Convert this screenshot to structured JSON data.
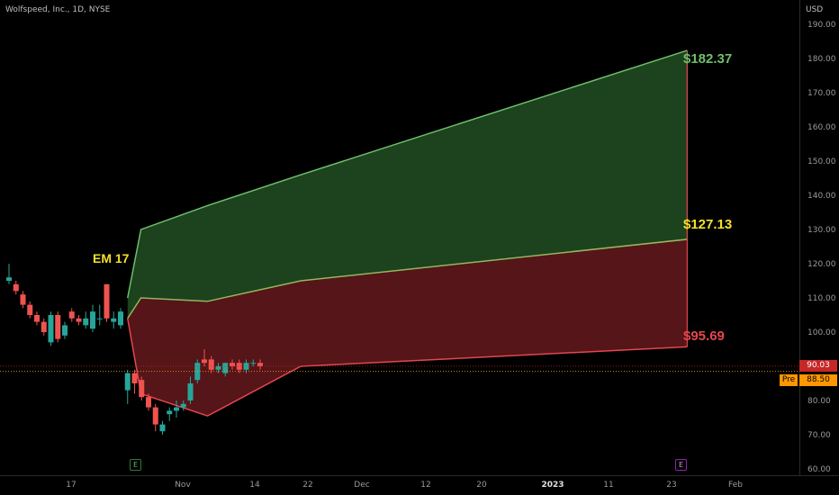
{
  "header": {
    "title": "Wolfspeed, Inc., 1D, NYSE",
    "currency": "USD"
  },
  "price_tags": {
    "last": "90.03",
    "pre_label": "Pre",
    "pre": "88.50"
  },
  "annotations": {
    "upper": "$182.37",
    "mid": "$127.13",
    "lower": "$95.69",
    "em": "EM 17"
  },
  "events": {
    "e1": "E",
    "e2": "E"
  },
  "colors": {
    "up": "#26a69a",
    "down": "#ef5350",
    "upper_zone": "#1e4620",
    "lower_zone": "#5a161a",
    "upper_line": "#6fbf6b",
    "lower_line": "#e5464e",
    "mid_line": "#c9a84a"
  },
  "chart_data": {
    "type": "candlestick",
    "y_ticks": [
      60,
      70,
      80,
      90,
      100,
      110,
      120,
      130,
      140,
      150,
      160,
      170,
      180,
      190
    ],
    "y_tick_labels": [
      "60.00",
      "70.00",
      "80.00",
      "90.00",
      "100.00",
      "110.00",
      "120.00",
      "130.00",
      "140.00",
      "150.00",
      "160.00",
      "170.00",
      "180.00",
      "190.00"
    ],
    "ylim": [
      58,
      193
    ],
    "x_labels": [
      "17",
      "Nov",
      "14",
      "22",
      "Dec",
      "12",
      "20",
      "2023",
      "11",
      "23",
      "Feb"
    ],
    "x_bold": [
      "2023"
    ],
    "candles": [
      {
        "o": 115,
        "h": 120,
        "l": 114,
        "c": 116
      },
      {
        "o": 114,
        "h": 115,
        "l": 111,
        "c": 112
      },
      {
        "o": 111,
        "h": 112,
        "l": 107,
        "c": 108
      },
      {
        "o": 108,
        "h": 109,
        "l": 104,
        "c": 105
      },
      {
        "o": 105,
        "h": 106,
        "l": 102,
        "c": 103
      },
      {
        "o": 103,
        "h": 104,
        "l": 99,
        "c": 100
      },
      {
        "o": 97,
        "h": 106,
        "l": 96,
        "c": 105
      },
      {
        "o": 105,
        "h": 106,
        "l": 97,
        "c": 98
      },
      {
        "o": 99,
        "h": 103,
        "l": 98,
        "c": 102
      },
      {
        "o": 106,
        "h": 107,
        "l": 103,
        "c": 104
      },
      {
        "o": 104,
        "h": 105,
        "l": 102,
        "c": 103
      },
      {
        "o": 102,
        "h": 106,
        "l": 101,
        "c": 104
      },
      {
        "o": 101,
        "h": 108,
        "l": 100,
        "c": 106
      },
      {
        "o": 104,
        "h": 108,
        "l": 102,
        "c": 104
      },
      {
        "o": 114,
        "h": 114,
        "l": 103,
        "c": 104
      },
      {
        "o": 103,
        "h": 106,
        "l": 101,
        "c": 104
      },
      {
        "o": 102,
        "h": 107,
        "l": 101,
        "c": 106
      },
      {
        "o": 83,
        "h": 89,
        "l": 79,
        "c": 88
      },
      {
        "o": 88,
        "h": 89,
        "l": 82,
        "c": 85
      },
      {
        "o": 86,
        "h": 87,
        "l": 80,
        "c": 81
      },
      {
        "o": 81,
        "h": 82,
        "l": 77,
        "c": 78
      },
      {
        "o": 78,
        "h": 79,
        "l": 71,
        "c": 73
      },
      {
        "o": 71,
        "h": 74,
        "l": 70,
        "c": 73
      },
      {
        "o": 76,
        "h": 78,
        "l": 74,
        "c": 77
      },
      {
        "o": 77,
        "h": 80,
        "l": 75,
        "c": 78
      },
      {
        "o": 78,
        "h": 80,
        "l": 77,
        "c": 79
      },
      {
        "o": 80,
        "h": 87,
        "l": 79,
        "c": 85
      },
      {
        "o": 86,
        "h": 92,
        "l": 85,
        "c": 91
      },
      {
        "o": 92,
        "h": 95,
        "l": 90,
        "c": 91
      },
      {
        "o": 92,
        "h": 93,
        "l": 88,
        "c": 89
      },
      {
        "o": 89,
        "h": 91,
        "l": 88,
        "c": 90
      },
      {
        "o": 88,
        "h": 91,
        "l": 87,
        "c": 91
      },
      {
        "o": 91,
        "h": 92,
        "l": 89,
        "c": 90
      },
      {
        "o": 91,
        "h": 92,
        "l": 88,
        "c": 89
      },
      {
        "o": 89,
        "h": 92,
        "l": 88,
        "c": 91
      },
      {
        "o": 91,
        "h": 92,
        "l": 90,
        "c": 91
      },
      {
        "o": 91,
        "h": 92,
        "l": 89,
        "c": 90
      }
    ],
    "expected_move": {
      "upper": [
        [
          0,
          110
        ],
        [
          1,
          130
        ],
        [
          6,
          137
        ],
        [
          13,
          146
        ],
        [
          42,
          182.37
        ]
      ],
      "mid": [
        [
          0,
          104
        ],
        [
          1,
          110
        ],
        [
          6,
          109
        ],
        [
          13,
          115
        ],
        [
          42,
          127.13
        ]
      ],
      "lower": [
        [
          0,
          104
        ],
        [
          1,
          82
        ],
        [
          6,
          75.5
        ],
        [
          13,
          90
        ],
        [
          42,
          95.69
        ]
      ]
    },
    "hlines": [
      90.03,
      88.5
    ]
  }
}
